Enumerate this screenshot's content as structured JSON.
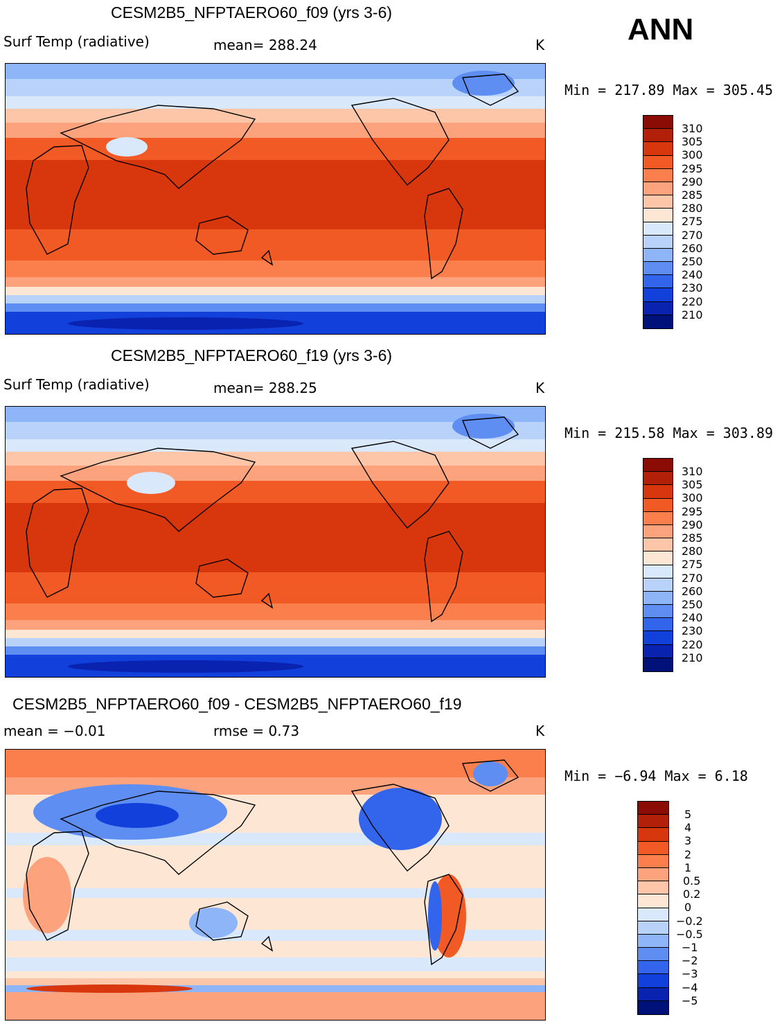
{
  "season": "ANN",
  "panels": [
    {
      "title": "CESM2B5_NFPTAERO60_f09 (yrs 3-6)",
      "left_label": "Surf Temp (radiative)",
      "center_label": "mean=  288.24",
      "units": "K",
      "minmax": "Min = 217.89 Max = 305.45",
      "colorbar_labels": [
        "310",
        "305",
        "300",
        "295",
        "290",
        "285",
        "280",
        "275",
        "270",
        "260",
        "250",
        "240",
        "230",
        "220",
        "210"
      ]
    },
    {
      "title": "CESM2B5_NFPTAERO60_f19 (yrs 3-6)",
      "left_label": "Surf Temp (radiative)",
      "center_label": "mean=  288.25",
      "units": "K",
      "minmax": "Min = 215.58 Max = 303.89",
      "colorbar_labels": [
        "310",
        "305",
        "300",
        "295",
        "290",
        "285",
        "280",
        "275",
        "270",
        "260",
        "250",
        "240",
        "230",
        "220",
        "210"
      ]
    },
    {
      "title": "CESM2B5_NFPTAERO60_f09 - CESM2B5_NFPTAERO60_f19",
      "left_label": "mean =   −0.01",
      "center_label": "rmse =    0.73",
      "units": "K",
      "minmax": "Min =  −6.94 Max =    6.18",
      "colorbar_labels": [
        "5",
        "4",
        "3",
        "2",
        "1",
        "0.5",
        "0.2",
        "0",
        "−0.2",
        "−0.5",
        "−1",
        "−2",
        "−3",
        "−4",
        "−5"
      ]
    }
  ],
  "colors": {
    "abs_scale": [
      "#8b0b05",
      "#b32009",
      "#d8360c",
      "#f25a25",
      "#fb7f4c",
      "#fca27c",
      "#fdc6a8",
      "#fde6d4",
      "#d9e8fb",
      "#b8d2fa",
      "#8db5f7",
      "#5e8ef2",
      "#3264ec",
      "#1240da",
      "#0a22b0",
      "#01117a"
    ],
    "diff_scale": [
      "#8b0b05",
      "#b32009",
      "#d8360c",
      "#f25a25",
      "#fb7f4c",
      "#fca27c",
      "#fdc6a8",
      "#fde6d4",
      "#d9e8fb",
      "#b8d2fa",
      "#8db5f7",
      "#5e8ef2",
      "#3264ec",
      "#1240da",
      "#0a22b0",
      "#01117a"
    ]
  }
}
